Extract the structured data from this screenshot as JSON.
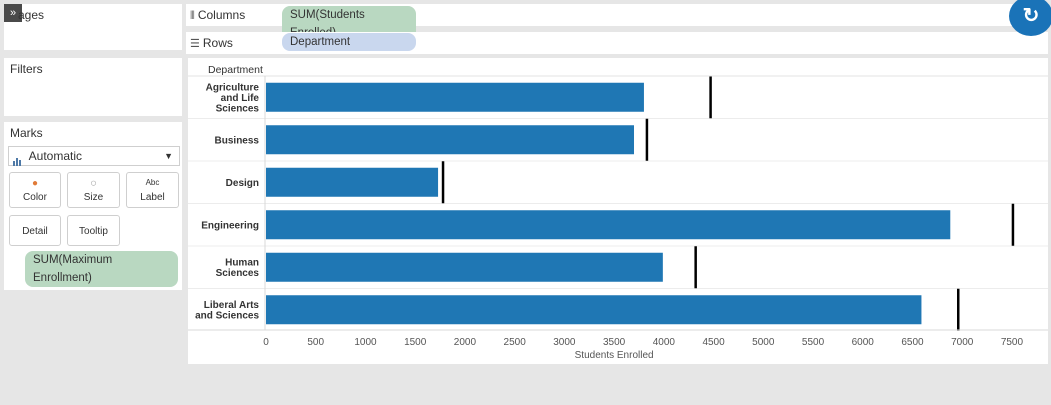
{
  "panels": {
    "pages_title": "ages",
    "filters_title": "Filters",
    "marks_title": "Marks",
    "marks_type": "Automatic",
    "mark_cards": {
      "color": "Color",
      "size": "Size",
      "label": "Label",
      "detail": "Detail",
      "tooltip": "Tooltip"
    },
    "marks_pill": "SUM(Maximum Enrollment)",
    "collapse_glyph": "»"
  },
  "shelves": {
    "columns_label": "Columns",
    "columns_pill": "SUM(Students Enrolled)",
    "rows_label": "Rows",
    "rows_pill": "Department"
  },
  "colors": {
    "bar": "#1f77b4",
    "reference": "#000000",
    "accent": "#1a73b8"
  },
  "chart_data": {
    "type": "bar",
    "orientation": "horizontal",
    "row_header": "Department",
    "xlabel": "Students Enrolled",
    "categories": [
      [
        "Agriculture",
        "and Life",
        "Sciences"
      ],
      [
        "Business"
      ],
      [
        "Design"
      ],
      [
        "Engineering"
      ],
      [
        "Human",
        "Sciences"
      ],
      [
        "Liberal Arts",
        "and Sciences"
      ]
    ],
    "category_names": [
      "Agriculture and Life Sciences",
      "Business",
      "Design",
      "Engineering",
      "Human Sciences",
      "Liberal Arts and Sciences"
    ],
    "series": [
      {
        "values": [
          3800,
          3700,
          1730,
          6880,
          3990,
          6590
        ]
      },
      {
        "values": [
          4470,
          3830,
          1780,
          7510,
          4320,
          6960
        ]
      }
    ],
    "xticks": [
      0,
      500,
      1000,
      1500,
      2000,
      2500,
      3000,
      3500,
      4000,
      4500,
      5000,
      5500,
      6000,
      6500,
      7000,
      7500
    ],
    "xlim": [
      0,
      7800
    ],
    "grid": false,
    "legend": "none"
  }
}
